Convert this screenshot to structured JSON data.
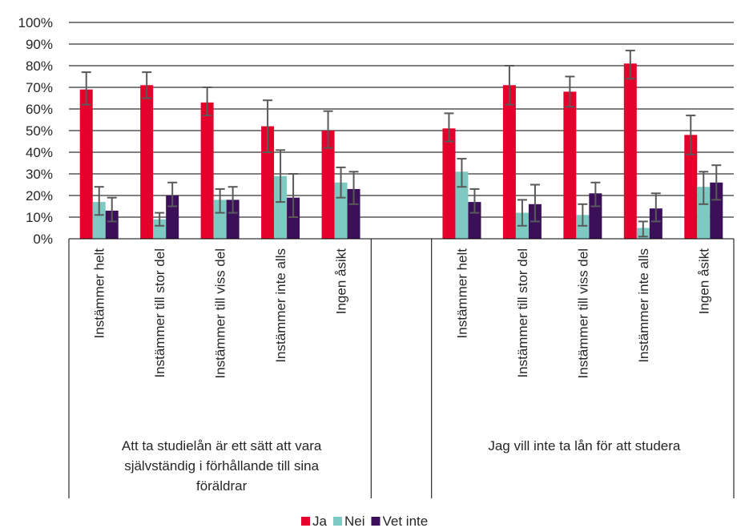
{
  "chart_data": {
    "type": "bar",
    "y_tick_labels": [
      "0%",
      "10%",
      "20%",
      "30%",
      "40%",
      "50%",
      "60%",
      "70%",
      "80%",
      "90%",
      "100%"
    ],
    "ylim": [
      0,
      100
    ],
    "grid": true,
    "legend_position": "bottom-center",
    "groups": [
      {
        "label_lines": [
          "Att ta studielån är ett sätt att vara",
          "självständig i förhållande till sina",
          "föräldrar"
        ],
        "categories": [
          "Instämmer helt",
          "Instämmer till stor del",
          "Instämmer till viss del",
          "Instämmer inte alls",
          "Ingen åsikt"
        ]
      },
      {
        "label_lines": [
          "Jag vill inte ta lån för att studera"
        ],
        "categories": [
          "Instämmer helt",
          "Instämmer till stor del",
          "Instämmer till viss del",
          "Instämmer inte alls",
          "Ingen åsikt"
        ]
      }
    ],
    "series": [
      {
        "name": "Ja",
        "color": "#e4002b",
        "values": [
          69,
          71,
          63,
          52,
          50,
          null,
          51,
          71,
          68,
          81,
          48
        ],
        "error": [
          [
            62,
            77
          ],
          [
            65,
            77
          ],
          [
            57,
            70
          ],
          [
            40,
            64
          ],
          [
            42,
            59
          ],
          null,
          [
            45,
            58
          ],
          [
            62,
            80
          ],
          [
            61,
            75
          ],
          [
            74,
            87
          ],
          [
            39,
            57
          ]
        ]
      },
      {
        "name": "Nei",
        "color": "#7ecac3",
        "values": [
          17,
          9,
          18,
          29,
          26,
          null,
          31,
          12,
          11,
          5,
          24
        ],
        "error": [
          [
            11,
            24
          ],
          [
            6,
            12
          ],
          [
            12,
            23
          ],
          [
            17,
            41
          ],
          [
            19,
            33
          ],
          null,
          [
            24,
            37
          ],
          [
            6,
            18
          ],
          [
            6,
            16
          ],
          [
            1,
            8
          ],
          [
            16,
            31
          ]
        ]
      },
      {
        "name": "Vet inte",
        "color": "#3b1059",
        "values": [
          13,
          20,
          18,
          19,
          23,
          null,
          17,
          16,
          21,
          14,
          26
        ],
        "error": [
          [
            8,
            19
          ],
          [
            15,
            26
          ],
          [
            12,
            24
          ],
          [
            10,
            30
          ],
          [
            16,
            31
          ],
          null,
          [
            12,
            23
          ],
          [
            8,
            25
          ],
          [
            15,
            26
          ],
          [
            8,
            21
          ],
          [
            18,
            34
          ]
        ]
      }
    ]
  }
}
